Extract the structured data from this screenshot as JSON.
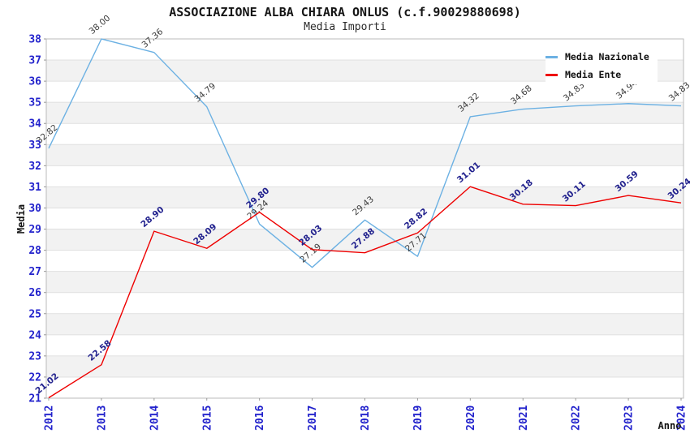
{
  "title": "ASSOCIAZIONE ALBA CHIARA ONLUS (c.f.90029880698)",
  "subtitle": "Media Importi",
  "legend": {
    "items": [
      {
        "label": "Media Nazionale",
        "color": "#6cb1e3"
      },
      {
        "label": "Media Ente",
        "color": "#ee0000"
      }
    ]
  },
  "chart_data": {
    "type": "line",
    "x": [
      2012,
      2013,
      2014,
      2015,
      2016,
      2017,
      2018,
      2019,
      2020,
      2021,
      2022,
      2023,
      2024
    ],
    "xlabel": "Anno",
    "ylabel": "Media",
    "ylim": [
      21,
      38
    ],
    "y_tick_step": 1,
    "grid": true,
    "legend_position": "top-right",
    "point_markers": false,
    "series": [
      {
        "name": "Media Nazionale",
        "color": "#6cb1e3",
        "label_color": "#3c3c3c",
        "label_weight": "normal",
        "values": [
          32.82,
          38.0,
          37.36,
          34.79,
          29.24,
          27.19,
          29.43,
          27.71,
          34.32,
          34.68,
          34.83,
          34.94,
          34.83
        ]
      },
      {
        "name": "Media Ente",
        "color": "#ee0000",
        "label_color": "#22228e",
        "label_weight": "bold",
        "values": [
          21.02,
          22.58,
          28.9,
          28.09,
          29.8,
          28.03,
          27.88,
          28.82,
          31.01,
          30.18,
          30.11,
          30.59,
          30.24
        ]
      }
    ],
    "style": {
      "band_colors": [
        "#ffffff",
        "#f2f2f2"
      ],
      "grid_color": "#e0e0e0",
      "border_color": "#bbbbbb",
      "tick_mark_color": "#999999",
      "tick_label_color": "#2222cc"
    }
  }
}
